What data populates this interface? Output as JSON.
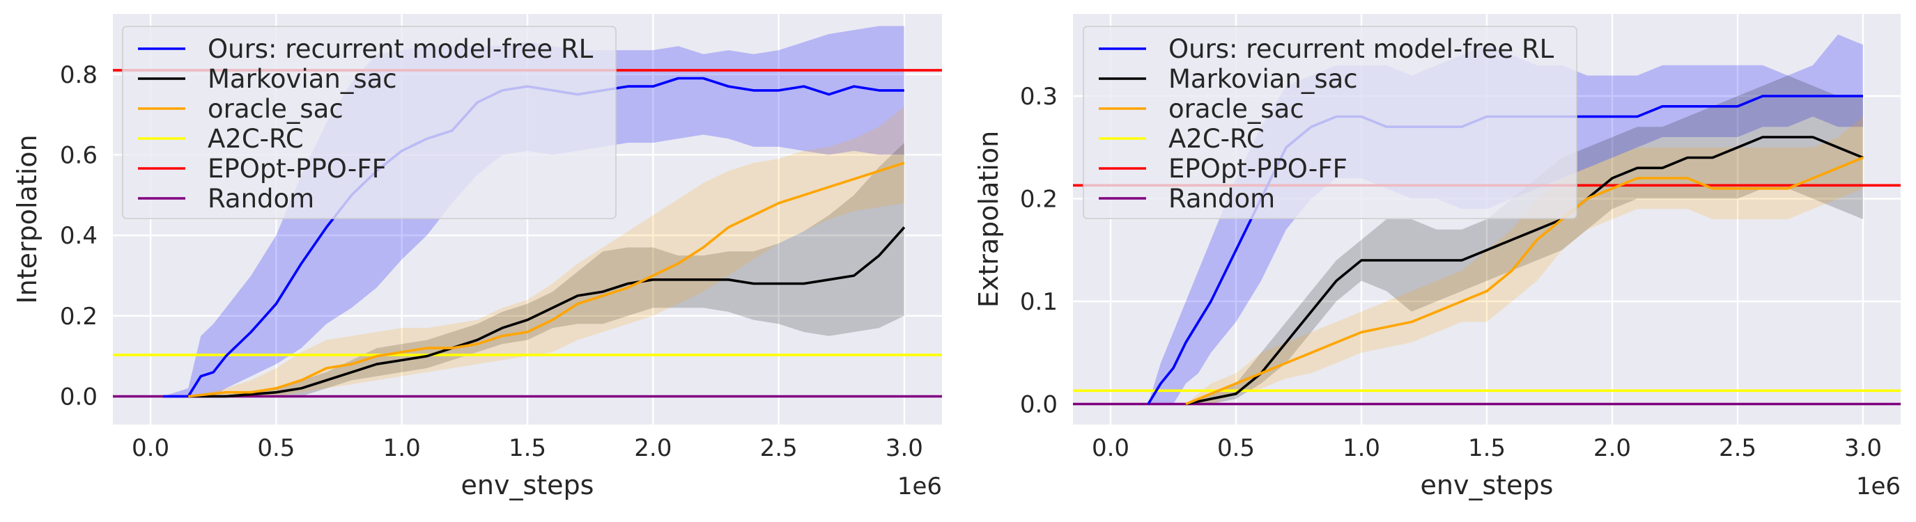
{
  "colors": {
    "ours": "#0000ff",
    "markovian": "#000000",
    "oracle": "#ffa500",
    "a2c": "#ffff00",
    "epopt": "#ff0000",
    "random": "#800080",
    "plot_bg": "#eaeaf2",
    "grid": "#ffffff"
  },
  "chart_data": [
    {
      "type": "line",
      "xlabel": "env_steps",
      "ylabel": "Interpolation",
      "x_multiplier_label": "1e6",
      "xlim": [
        -0.15,
        3.15
      ],
      "ylim": [
        -0.07,
        0.95
      ],
      "xticks": [
        0.0,
        0.5,
        1.0,
        1.5,
        2.0,
        2.5,
        3.0
      ],
      "xtick_labels": [
        "0.0",
        "0.5",
        "1.0",
        "1.5",
        "2.0",
        "2.5",
        "3.0"
      ],
      "yticks": [
        0.0,
        0.2,
        0.4,
        0.6,
        0.8
      ],
      "ytick_labels": [
        "0.0",
        "0.2",
        "0.4",
        "0.6",
        "0.8"
      ],
      "legend_position": "top-left",
      "hlines": [
        {
          "key": "a2c",
          "name": "A2C-RC",
          "y": 0.103
        },
        {
          "key": "epopt",
          "name": "EPOpt-PPO-FF",
          "y": 0.81
        },
        {
          "key": "random",
          "name": "Random",
          "y": 0.0
        }
      ],
      "series": [
        {
          "key": "ours",
          "name": "Ours: recurrent model-free RL",
          "x": [
            0.05,
            0.15,
            0.2,
            0.25,
            0.3,
            0.4,
            0.5,
            0.6,
            0.7,
            0.8,
            0.9,
            1.0,
            1.1,
            1.2,
            1.3,
            1.4,
            1.5,
            1.6,
            1.7,
            1.8,
            1.9,
            2.0,
            2.1,
            2.2,
            2.3,
            2.4,
            2.5,
            2.6,
            2.7,
            2.8,
            2.9,
            3.0
          ],
          "mean": [
            0.0,
            0.0,
            0.05,
            0.06,
            0.1,
            0.16,
            0.23,
            0.33,
            0.42,
            0.5,
            0.56,
            0.61,
            0.64,
            0.66,
            0.73,
            0.76,
            0.77,
            0.76,
            0.75,
            0.76,
            0.77,
            0.77,
            0.79,
            0.79,
            0.77,
            0.76,
            0.76,
            0.77,
            0.75,
            0.77,
            0.76,
            0.76
          ],
          "upper": [
            0.0,
            0.02,
            0.15,
            0.18,
            0.22,
            0.3,
            0.4,
            0.55,
            0.68,
            0.78,
            0.85,
            0.86,
            0.87,
            0.87,
            0.87,
            0.87,
            0.88,
            0.87,
            0.86,
            0.86,
            0.86,
            0.86,
            0.87,
            0.85,
            0.86,
            0.85,
            0.86,
            0.88,
            0.9,
            0.91,
            0.92,
            0.92
          ],
          "lower": [
            0.0,
            0.0,
            0.0,
            0.0,
            0.02,
            0.05,
            0.08,
            0.12,
            0.18,
            0.22,
            0.27,
            0.34,
            0.4,
            0.48,
            0.55,
            0.6,
            0.61,
            0.6,
            0.61,
            0.62,
            0.63,
            0.63,
            0.64,
            0.65,
            0.64,
            0.62,
            0.62,
            0.61,
            0.6,
            0.61,
            0.6,
            0.6
          ]
        },
        {
          "key": "markovian",
          "name": "Markovian_sac",
          "x": [
            0.15,
            0.3,
            0.4,
            0.5,
            0.6,
            0.7,
            0.8,
            0.9,
            1.0,
            1.1,
            1.2,
            1.3,
            1.4,
            1.5,
            1.6,
            1.7,
            1.8,
            1.9,
            2.0,
            2.1,
            2.2,
            2.3,
            2.4,
            2.5,
            2.6,
            2.7,
            2.8,
            2.9,
            3.0
          ],
          "mean": [
            0.0,
            0.0,
            0.005,
            0.01,
            0.02,
            0.04,
            0.06,
            0.08,
            0.09,
            0.1,
            0.12,
            0.14,
            0.17,
            0.19,
            0.22,
            0.25,
            0.26,
            0.28,
            0.29,
            0.29,
            0.29,
            0.29,
            0.28,
            0.28,
            0.28,
            0.29,
            0.3,
            0.35,
            0.42
          ],
          "upper": [
            0.0,
            0.005,
            0.01,
            0.02,
            0.04,
            0.06,
            0.09,
            0.12,
            0.13,
            0.14,
            0.16,
            0.18,
            0.21,
            0.23,
            0.26,
            0.31,
            0.36,
            0.37,
            0.37,
            0.35,
            0.35,
            0.36,
            0.36,
            0.38,
            0.41,
            0.45,
            0.5,
            0.57,
            0.63
          ],
          "lower": [
            0.0,
            0.0,
            0.0,
            0.0,
            0.0,
            0.02,
            0.04,
            0.05,
            0.06,
            0.07,
            0.09,
            0.11,
            0.13,
            0.14,
            0.17,
            0.18,
            0.18,
            0.2,
            0.22,
            0.22,
            0.22,
            0.21,
            0.19,
            0.18,
            0.16,
            0.15,
            0.16,
            0.17,
            0.2
          ]
        },
        {
          "key": "oracle",
          "name": "oracle_sac",
          "x": [
            0.15,
            0.3,
            0.4,
            0.5,
            0.6,
            0.7,
            0.8,
            0.9,
            1.0,
            1.1,
            1.2,
            1.3,
            1.4,
            1.5,
            1.6,
            1.7,
            1.8,
            1.9,
            2.0,
            2.1,
            2.2,
            2.3,
            2.4,
            2.5,
            2.6,
            2.7,
            2.8,
            2.9,
            3.0
          ],
          "mean": [
            0.0,
            0.01,
            0.01,
            0.02,
            0.04,
            0.07,
            0.08,
            0.1,
            0.11,
            0.12,
            0.12,
            0.13,
            0.15,
            0.16,
            0.19,
            0.23,
            0.25,
            0.27,
            0.3,
            0.33,
            0.37,
            0.42,
            0.45,
            0.48,
            0.5,
            0.52,
            0.54,
            0.56,
            0.58
          ],
          "upper": [
            0.0,
            0.02,
            0.04,
            0.07,
            0.11,
            0.14,
            0.15,
            0.16,
            0.17,
            0.17,
            0.18,
            0.19,
            0.22,
            0.24,
            0.28,
            0.33,
            0.37,
            0.41,
            0.45,
            0.49,
            0.53,
            0.56,
            0.58,
            0.59,
            0.61,
            0.62,
            0.64,
            0.67,
            0.72
          ],
          "lower": [
            0.0,
            0.0,
            0.0,
            0.0,
            0.01,
            0.02,
            0.03,
            0.04,
            0.05,
            0.06,
            0.07,
            0.08,
            0.09,
            0.1,
            0.11,
            0.14,
            0.16,
            0.18,
            0.2,
            0.23,
            0.26,
            0.3,
            0.34,
            0.38,
            0.41,
            0.44,
            0.46,
            0.47,
            0.48
          ]
        }
      ]
    },
    {
      "type": "line",
      "xlabel": "env_steps",
      "ylabel": "Extrapolation",
      "x_multiplier_label": "1e6",
      "xlim": [
        -0.15,
        3.15
      ],
      "ylim": [
        -0.02,
        0.38
      ],
      "xticks": [
        0.0,
        0.5,
        1.0,
        1.5,
        2.0,
        2.5,
        3.0
      ],
      "xtick_labels": [
        "0.0",
        "0.5",
        "1.0",
        "1.5",
        "2.0",
        "2.5",
        "3.0"
      ],
      "yticks": [
        0.0,
        0.1,
        0.2,
        0.3
      ],
      "ytick_labels": [
        "0.0",
        "0.1",
        "0.2",
        "0.3"
      ],
      "legend_position": "top-left",
      "hlines": [
        {
          "key": "a2c",
          "name": "A2C-RC",
          "y": 0.013
        },
        {
          "key": "epopt",
          "name": "EPOpt-PPO-FF",
          "y": 0.213
        },
        {
          "key": "random",
          "name": "Random",
          "y": 0.0
        }
      ],
      "series": [
        {
          "key": "ours",
          "name": "Ours: recurrent model-free RL",
          "x": [
            0.15,
            0.2,
            0.25,
            0.3,
            0.35,
            0.4,
            0.5,
            0.6,
            0.7,
            0.8,
            0.9,
            1.0,
            1.1,
            1.2,
            1.3,
            1.4,
            1.5,
            1.6,
            1.7,
            1.8,
            1.9,
            2.0,
            2.1,
            2.2,
            2.3,
            2.4,
            2.5,
            2.6,
            2.7,
            2.8,
            2.9,
            3.0
          ],
          "mean": [
            0.0,
            0.02,
            0.035,
            0.06,
            0.08,
            0.1,
            0.15,
            0.2,
            0.25,
            0.27,
            0.28,
            0.28,
            0.27,
            0.27,
            0.27,
            0.27,
            0.28,
            0.28,
            0.28,
            0.28,
            0.28,
            0.28,
            0.28,
            0.29,
            0.29,
            0.29,
            0.29,
            0.3,
            0.3,
            0.3,
            0.3,
            0.3
          ],
          "upper": [
            0.0,
            0.04,
            0.07,
            0.1,
            0.13,
            0.16,
            0.22,
            0.27,
            0.31,
            0.32,
            0.33,
            0.33,
            0.33,
            0.32,
            0.33,
            0.34,
            0.35,
            0.34,
            0.33,
            0.33,
            0.32,
            0.32,
            0.32,
            0.33,
            0.33,
            0.33,
            0.33,
            0.33,
            0.32,
            0.33,
            0.36,
            0.35
          ],
          "lower": [
            0.0,
            0.0,
            0.0,
            0.02,
            0.03,
            0.05,
            0.08,
            0.12,
            0.17,
            0.2,
            0.22,
            0.22,
            0.21,
            0.2,
            0.2,
            0.19,
            0.19,
            0.2,
            0.21,
            0.22,
            0.23,
            0.24,
            0.25,
            0.26,
            0.26,
            0.26,
            0.26,
            0.27,
            0.27,
            0.28,
            0.27,
            0.27
          ]
        },
        {
          "key": "markovian",
          "name": "Markovian_sac",
          "x": [
            0.3,
            0.4,
            0.5,
            0.6,
            0.7,
            0.8,
            0.9,
            1.0,
            1.1,
            1.2,
            1.3,
            1.4,
            1.5,
            1.6,
            1.7,
            1.8,
            1.9,
            2.0,
            2.1,
            2.2,
            2.3,
            2.4,
            2.5,
            2.6,
            2.7,
            2.8,
            2.9,
            3.0
          ],
          "mean": [
            0.0,
            0.005,
            0.01,
            0.03,
            0.06,
            0.09,
            0.12,
            0.14,
            0.14,
            0.14,
            0.14,
            0.14,
            0.15,
            0.16,
            0.17,
            0.18,
            0.2,
            0.22,
            0.23,
            0.23,
            0.24,
            0.24,
            0.25,
            0.26,
            0.26,
            0.26,
            0.25,
            0.24
          ],
          "upper": [
            0.0,
            0.01,
            0.02,
            0.05,
            0.08,
            0.11,
            0.14,
            0.16,
            0.18,
            0.18,
            0.17,
            0.17,
            0.18,
            0.2,
            0.22,
            0.24,
            0.25,
            0.26,
            0.27,
            0.27,
            0.28,
            0.29,
            0.3,
            0.31,
            0.32,
            0.31,
            0.3,
            0.3
          ],
          "lower": [
            0.0,
            0.0,
            0.005,
            0.02,
            0.04,
            0.07,
            0.1,
            0.12,
            0.11,
            0.09,
            0.1,
            0.11,
            0.12,
            0.13,
            0.14,
            0.15,
            0.17,
            0.19,
            0.2,
            0.2,
            0.2,
            0.2,
            0.2,
            0.21,
            0.21,
            0.2,
            0.19,
            0.18
          ]
        },
        {
          "key": "oracle",
          "name": "oracle_sac",
          "x": [
            0.3,
            0.4,
            0.5,
            0.6,
            0.7,
            0.8,
            0.9,
            1.0,
            1.1,
            1.2,
            1.3,
            1.4,
            1.5,
            1.6,
            1.7,
            1.8,
            1.9,
            2.0,
            2.1,
            2.2,
            2.3,
            2.4,
            2.5,
            2.6,
            2.7,
            2.8,
            2.9,
            3.0
          ],
          "mean": [
            0.0,
            0.01,
            0.02,
            0.03,
            0.04,
            0.05,
            0.06,
            0.07,
            0.075,
            0.08,
            0.09,
            0.1,
            0.11,
            0.13,
            0.16,
            0.18,
            0.2,
            0.21,
            0.22,
            0.22,
            0.22,
            0.21,
            0.21,
            0.21,
            0.21,
            0.22,
            0.23,
            0.24
          ],
          "upper": [
            0.0,
            0.02,
            0.03,
            0.05,
            0.06,
            0.07,
            0.08,
            0.09,
            0.1,
            0.11,
            0.12,
            0.13,
            0.15,
            0.17,
            0.2,
            0.22,
            0.23,
            0.24,
            0.25,
            0.25,
            0.25,
            0.25,
            0.25,
            0.25,
            0.25,
            0.25,
            0.26,
            0.28
          ],
          "lower": [
            0.0,
            0.0,
            0.01,
            0.015,
            0.025,
            0.03,
            0.04,
            0.05,
            0.055,
            0.06,
            0.07,
            0.08,
            0.08,
            0.1,
            0.12,
            0.15,
            0.17,
            0.18,
            0.19,
            0.19,
            0.19,
            0.18,
            0.18,
            0.18,
            0.18,
            0.19,
            0.2,
            0.21
          ]
        }
      ]
    }
  ]
}
